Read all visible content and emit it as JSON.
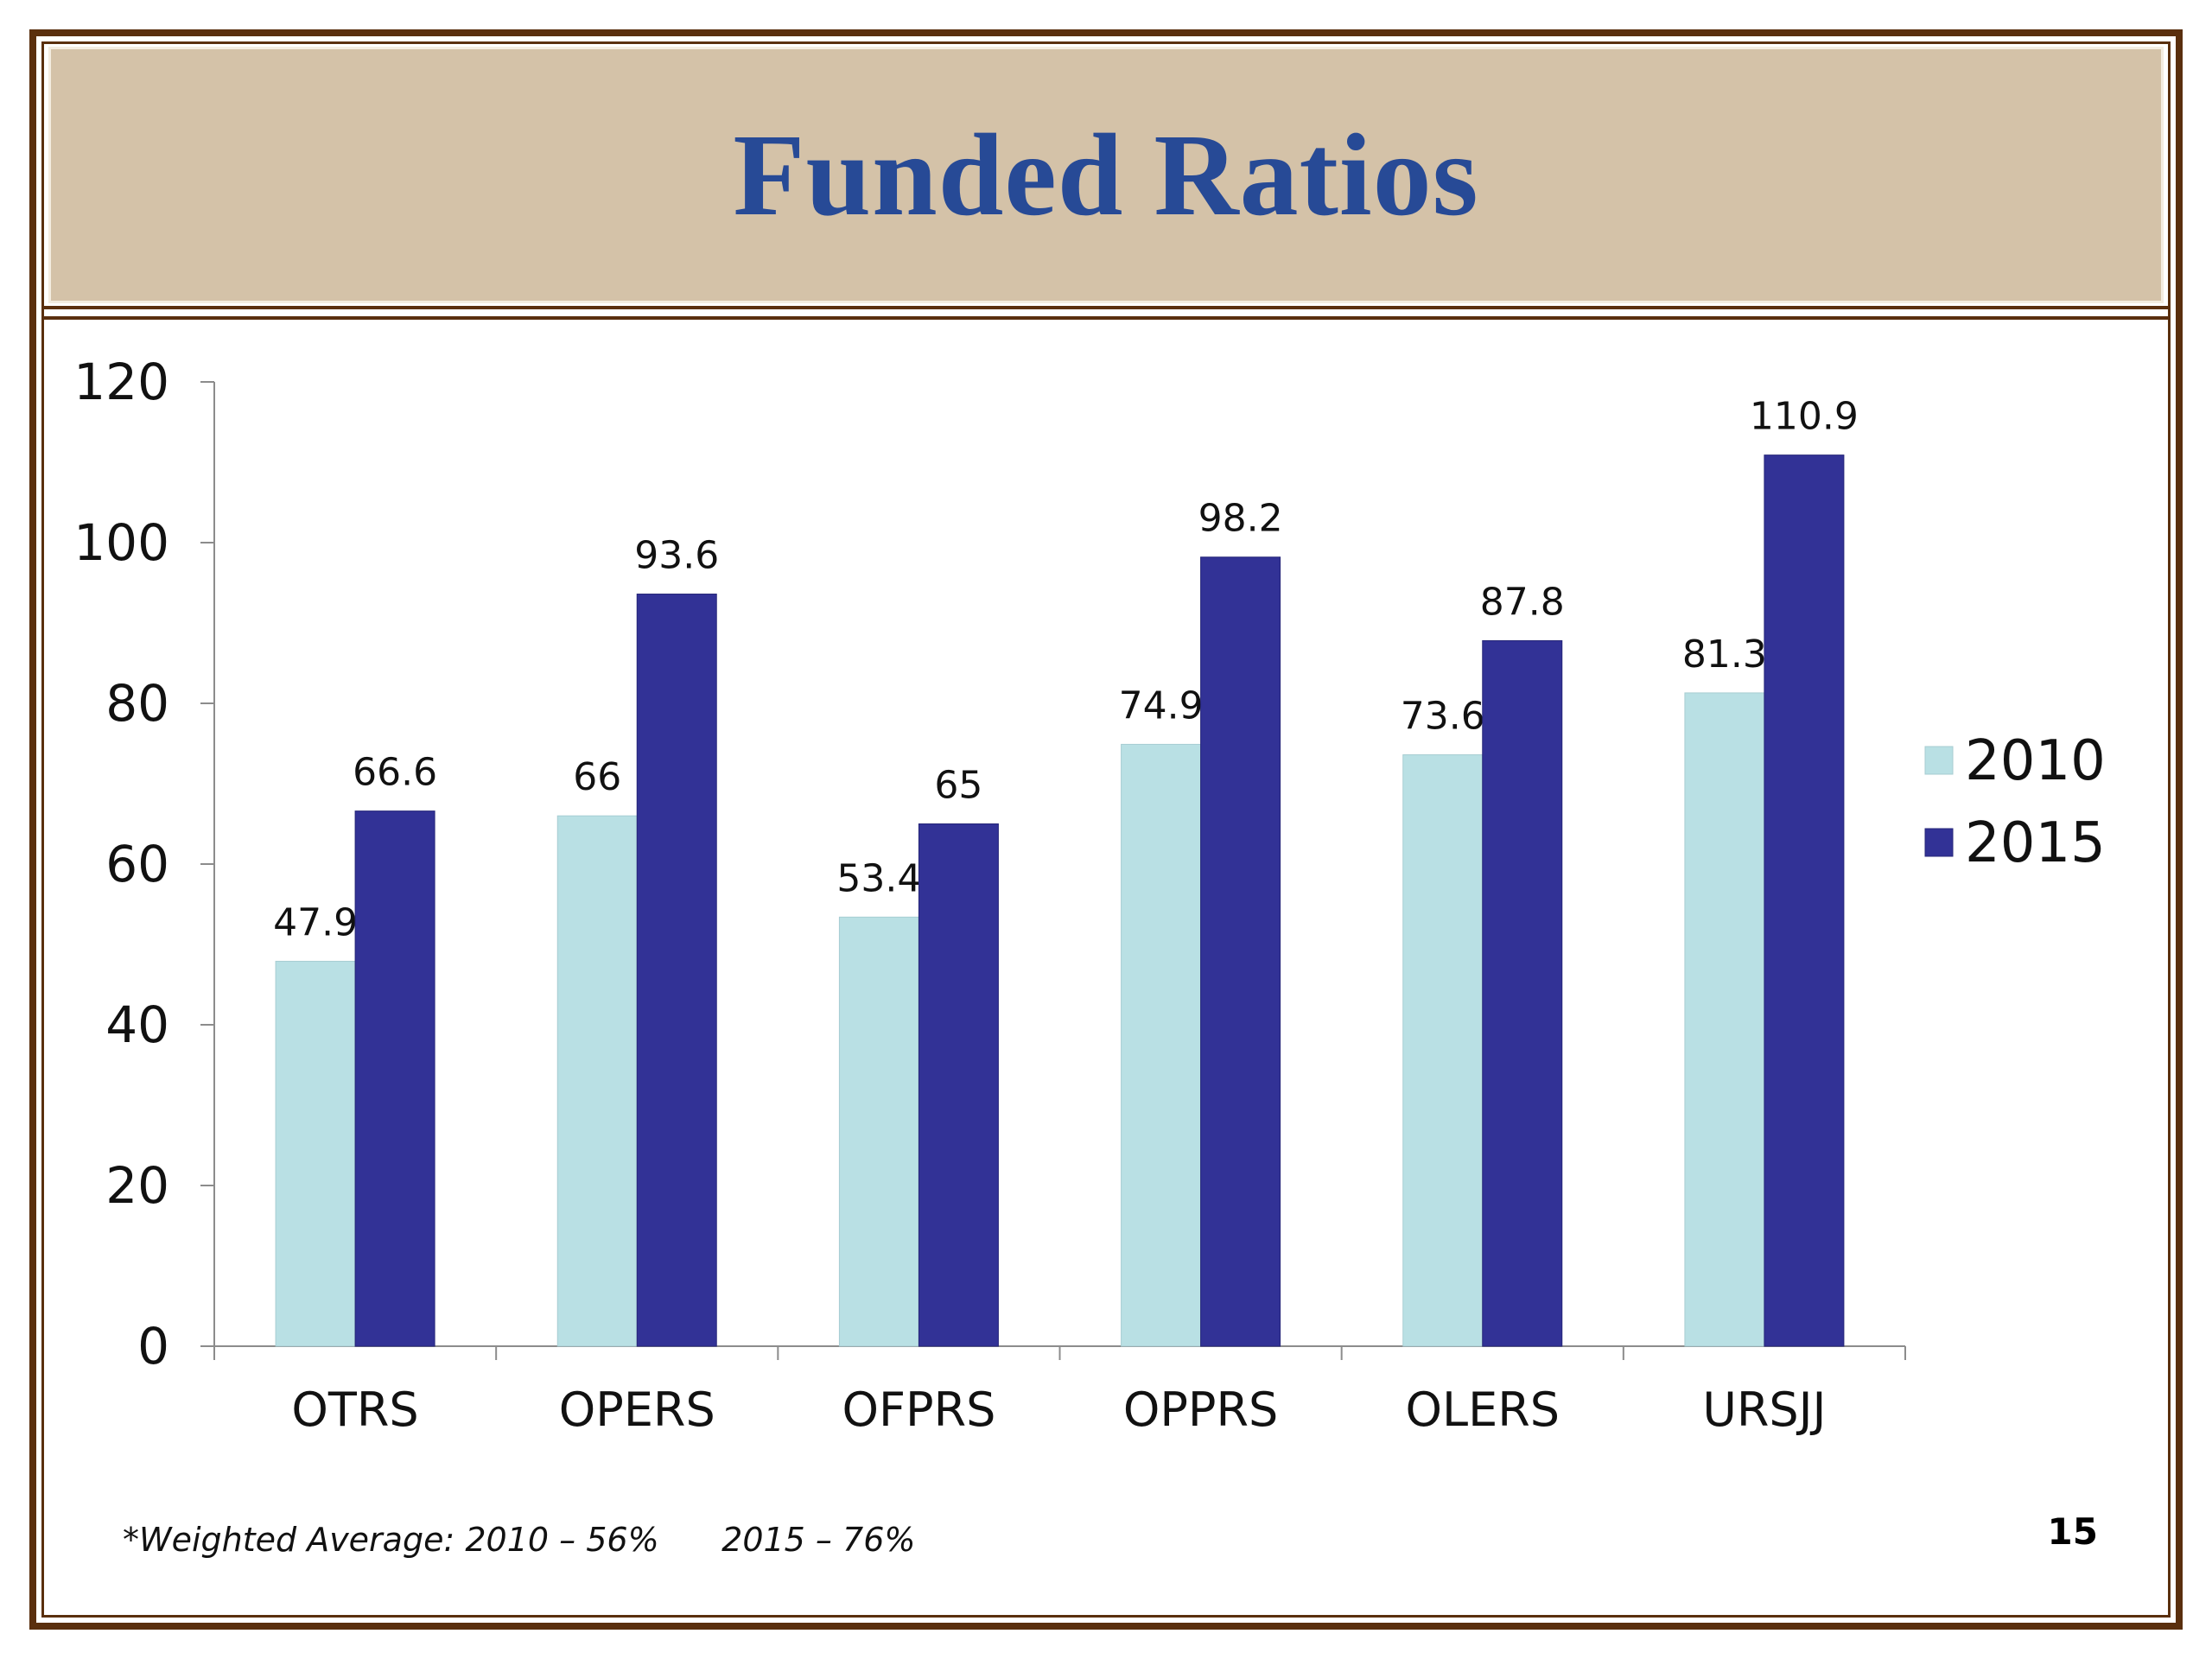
{
  "slide": {
    "title": "Funded Ratios",
    "footnote": "*Weighted Average: 2010 – 56%      2015 – 76%",
    "page_number": "15"
  },
  "colors": {
    "series_2010": "#b9e0e4",
    "series_2015": "#323296",
    "title": "#274a96",
    "band": "#d4c2a8",
    "frame": "#5a2f0e"
  },
  "chart_data": {
    "type": "bar",
    "title": "",
    "xlabel": "",
    "ylabel": "",
    "categories": [
      "OTRS",
      "OPERS",
      "OFPRS",
      "OPPRS",
      "OLERS",
      "URSJJ"
    ],
    "series": [
      {
        "name": "2010",
        "values": [
          47.9,
          66,
          53.4,
          74.9,
          73.6,
          81.3
        ],
        "labels": [
          "47.9",
          "66",
          "53.4",
          "74.9",
          "73.6",
          "81.3"
        ]
      },
      {
        "name": "2015",
        "values": [
          66.6,
          93.6,
          65,
          98.2,
          87.8,
          110.9
        ],
        "labels": [
          "66.6",
          "93.6",
          "65",
          "98.2",
          "87.8",
          "110.9"
        ]
      }
    ],
    "ylim": [
      0,
      120
    ],
    "yticks": [
      "0",
      "20",
      "40",
      "60",
      "80",
      "100",
      "120"
    ],
    "grid": false,
    "legend_position": "right"
  }
}
